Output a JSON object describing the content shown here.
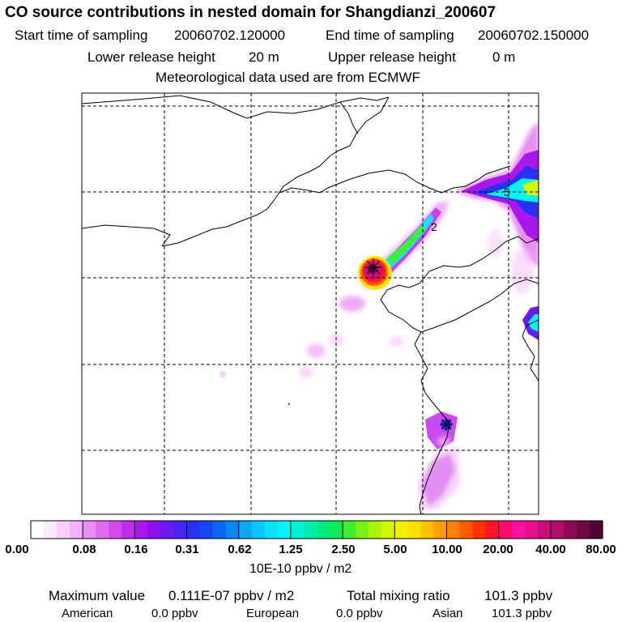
{
  "chart_data": {
    "type": "heatmap",
    "title": "CO  source contributions in nested domain for Shangdianzi_200607",
    "header": {
      "start_label": "Start time of sampling",
      "start_value": "20060702.120000",
      "end_label": "End time of sampling",
      "end_value": "20060702.150000",
      "lower_label": "Lower release height",
      "lower_value": "20 m",
      "upper_label": "Upper release height",
      "upper_value": "0 m",
      "met_note": "Meteorological data used are from ECMWF"
    },
    "colorbar": {
      "tick_labels": [
        "0.00",
        "0.08",
        "0.16",
        "0.31",
        "0.62",
        "1.25",
        "2.50",
        "5.00",
        "10.00",
        "20.00",
        "40.00",
        "80.00"
      ],
      "unit_label": "10E-10 ppbv / m2",
      "colors": [
        "#ffffff",
        "#fde8fd",
        "#f9d0fb",
        "#f2b2f8",
        "#ea8ff4",
        "#e06df0",
        "#d24aed",
        "#c02cec",
        "#a818ec",
        "#8c10ee",
        "#6c18f0",
        "#4a22f2",
        "#2830f2",
        "#1448f2",
        "#0a66f4",
        "#0a86f6",
        "#0aa6f8",
        "#0ac4fa",
        "#0ae0fc",
        "#00f4fc",
        "#00f0d6",
        "#00ecac",
        "#00e882",
        "#10ea58",
        "#40ee30",
        "#78f214",
        "#a8f408",
        "#d4f600",
        "#f2f000",
        "#ffe000",
        "#ffc000",
        "#ffa000",
        "#ff8000",
        "#ff5a00",
        "#ff3200",
        "#ff1428",
        "#ff0a64",
        "#ff10a0",
        "#e6108e",
        "#cc0e7c",
        "#b00c6a",
        "#900a56",
        "#700842",
        "#500630"
      ]
    },
    "plumes": [
      {
        "name": "source-peak",
        "lon": 0.635,
        "lat": 0.585,
        "value": 80.0
      },
      {
        "name": "plume-ne-1",
        "lon": 0.72,
        "lat": 0.66,
        "value": 2.5
      },
      {
        "name": "plume-ne-2",
        "lon": 0.77,
        "lat": 0.72,
        "value": 0.62
      },
      {
        "name": "plume-north",
        "lon": 0.94,
        "lat": 0.78,
        "value": 1.25
      },
      {
        "name": "plume-east",
        "lon": 0.98,
        "lat": 0.43,
        "value": 0.62
      },
      {
        "name": "plume-south-1",
        "lon": 0.8,
        "lat": 0.2,
        "value": 0.31
      },
      {
        "name": "plume-south-2",
        "lon": 0.78,
        "lat": 0.07,
        "value": 0.16
      },
      {
        "name": "plume-sw",
        "lon": 0.55,
        "lat": 0.46,
        "value": 0.08
      }
    ],
    "contour_labels": [
      "2",
      "5"
    ],
    "grid": true
  },
  "footer": {
    "max_label": "Maximum value",
    "max_value": "0.111E-07 ppbv / m2",
    "total_label": "Total mixing ratio",
    "total_value": "101.3 ppbv",
    "regions": [
      {
        "name": "American",
        "value": "0.0 ppbv"
      },
      {
        "name": "European",
        "value": "0.0 ppbv"
      },
      {
        "name": "Asian",
        "value": "101.3 ppbv"
      }
    ]
  }
}
